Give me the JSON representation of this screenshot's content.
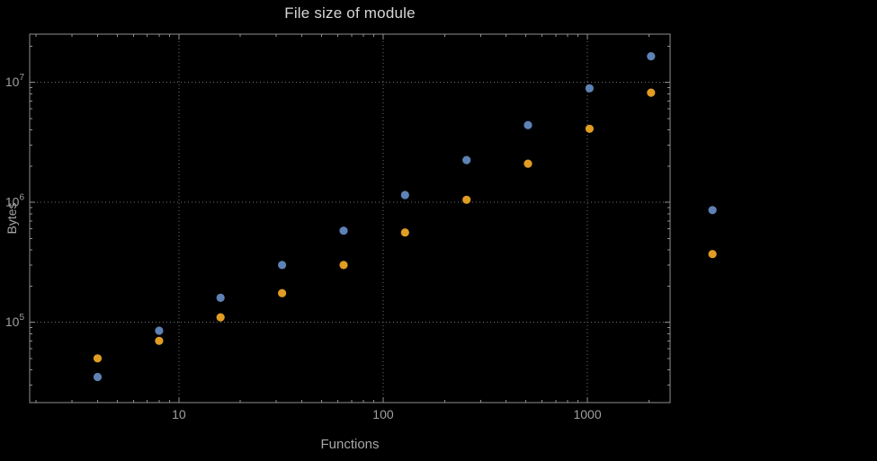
{
  "colors": {
    "background": "#000000",
    "frame": "#909090",
    "grid": "#6f6f6f",
    "tick_label": "#9f9f9f",
    "title": "#d6d6d6",
    "axis_label": "#a6a6a6",
    "blue": "#5e82b5",
    "orange": "#e19c24"
  },
  "chart_data": {
    "type": "scatter",
    "title": "File size of module",
    "xlabel": "Functions",
    "ylabel": "Bytes",
    "x_scale": "log",
    "y_scale": "log",
    "grid": "dotted major gridlines",
    "legend": "none",
    "x": [
      4,
      8,
      16,
      32,
      64,
      128,
      256,
      512,
      1024,
      2048,
      4096
    ],
    "series": [
      {
        "name": "blue",
        "color": "#5e82b5",
        "values": [
          35000,
          85000,
          160000,
          300000,
          580000,
          1150000,
          2250000,
          4400000,
          8900000,
          16500000,
          860000
        ]
      },
      {
        "name": "orange",
        "color": "#e19c24",
        "values": [
          50000,
          70000,
          110000,
          175000,
          300000,
          560000,
          1050000,
          2100000,
          4100000,
          8200000,
          370000
        ]
      }
    ],
    "x_ticks": [
      {
        "label": "10",
        "value": 10
      },
      {
        "label": "100",
        "value": 100
      },
      {
        "label": "1000",
        "value": 1000
      }
    ],
    "y_ticks": [
      {
        "base": "10",
        "exp": "5",
        "value": 100000
      },
      {
        "base": "10",
        "exp": "6",
        "value": 1000000
      },
      {
        "base": "10",
        "exp": "7",
        "value": 10000000
      }
    ],
    "xlim": [
      1.86,
      2540
    ],
    "ylim": [
      21400,
      25200000
    ]
  }
}
